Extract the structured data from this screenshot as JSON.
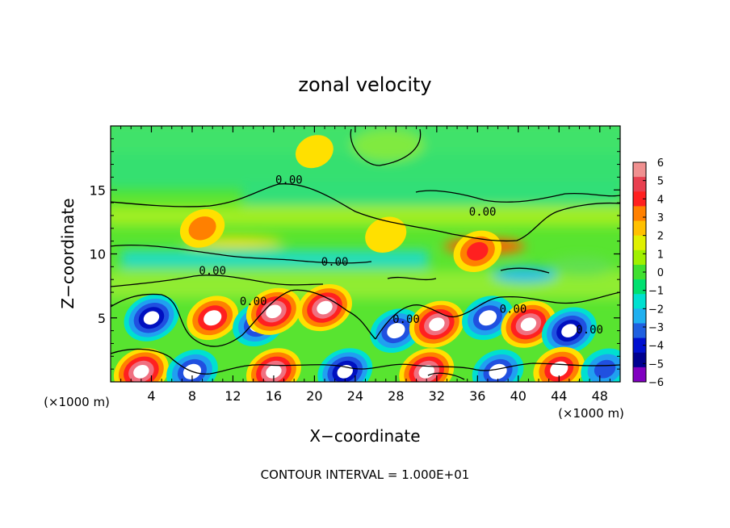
{
  "chart_data": {
    "type": "heatmap",
    "title": "zonal velocity",
    "xlabel": "X−coordinate",
    "ylabel": "Z−coordinate",
    "x_unit": "(×1000 m)",
    "z_unit": "(×1000 m)",
    "footer": "CONTOUR INTERVAL = 1.000E+01",
    "xlim": [
      0,
      50
    ],
    "ylim": [
      0,
      20
    ],
    "x_ticks": [
      4,
      8,
      12,
      16,
      20,
      24,
      28,
      32,
      36,
      40,
      44,
      48
    ],
    "y_ticks": [
      5,
      10,
      15
    ],
    "colorbar": {
      "range": [
        -6,
        6
      ],
      "ticks": [
        "6",
        "5",
        "4",
        "3",
        "2",
        "1",
        "0",
        "−1",
        "−2",
        "−3",
        "−4",
        "−5",
        "−6"
      ],
      "colors": [
        "#f09090",
        "#e84050",
        "#ff2020",
        "#ff8000",
        "#ffc000",
        "#e0f000",
        "#a0f000",
        "#40e030",
        "#00e070",
        "#00e0d0",
        "#20b0f0",
        "#2060e0",
        "#0010d0",
        "#000090",
        "#8000c0"
      ]
    },
    "contour_labels": [
      {
        "text": "0.00",
        "x": 17.5,
        "z": 15.5
      },
      {
        "text": "0.00",
        "x": 36.5,
        "z": 13.0
      },
      {
        "text": "0.00",
        "x": 22.0,
        "z": 9.1
      },
      {
        "text": "0.00",
        "x": 10.0,
        "z": 8.4
      },
      {
        "text": "0.00",
        "x": 14.0,
        "z": 6.0
      },
      {
        "text": "0.00",
        "x": 29.0,
        "z": 4.6
      },
      {
        "text": "0.00",
        "x": 39.5,
        "z": 5.4
      },
      {
        "text": "0.00",
        "x": 47.0,
        "z": 3.8
      }
    ],
    "anomalies": [
      {
        "x": 4.0,
        "z": 5.0,
        "value": -6
      },
      {
        "x": 10.0,
        "z": 5.0,
        "value": 5
      },
      {
        "x": 14.5,
        "z": 4.5,
        "value": -5
      },
      {
        "x": 16.0,
        "z": 5.5,
        "value": 6
      },
      {
        "x": 21.0,
        "z": 5.8,
        "value": 6
      },
      {
        "x": 28.0,
        "z": 4.0,
        "value": -5
      },
      {
        "x": 32.0,
        "z": 4.5,
        "value": 6
      },
      {
        "x": 37.0,
        "z": 5.0,
        "value": -5
      },
      {
        "x": 41.0,
        "z": 4.5,
        "value": 6
      },
      {
        "x": 45.0,
        "z": 4.0,
        "value": -6
      },
      {
        "x": 3.0,
        "z": 0.8,
        "value": 6
      },
      {
        "x": 8.0,
        "z": 0.8,
        "value": -5
      },
      {
        "x": 16.0,
        "z": 0.8,
        "value": 6
      },
      {
        "x": 23.0,
        "z": 0.8,
        "value": -6
      },
      {
        "x": 31.0,
        "z": 0.8,
        "value": 6
      },
      {
        "x": 38.0,
        "z": 0.8,
        "value": -5
      },
      {
        "x": 44.0,
        "z": 1.0,
        "value": 5
      },
      {
        "x": 48.5,
        "z": 1.0,
        "value": -4
      },
      {
        "x": 9.0,
        "z": 12.0,
        "value": 3
      },
      {
        "x": 27.0,
        "z": 11.5,
        "value": 2
      },
      {
        "x": 36.0,
        "z": 10.2,
        "value": 4
      },
      {
        "x": 20.0,
        "z": 18.0,
        "value": 1
      }
    ]
  }
}
